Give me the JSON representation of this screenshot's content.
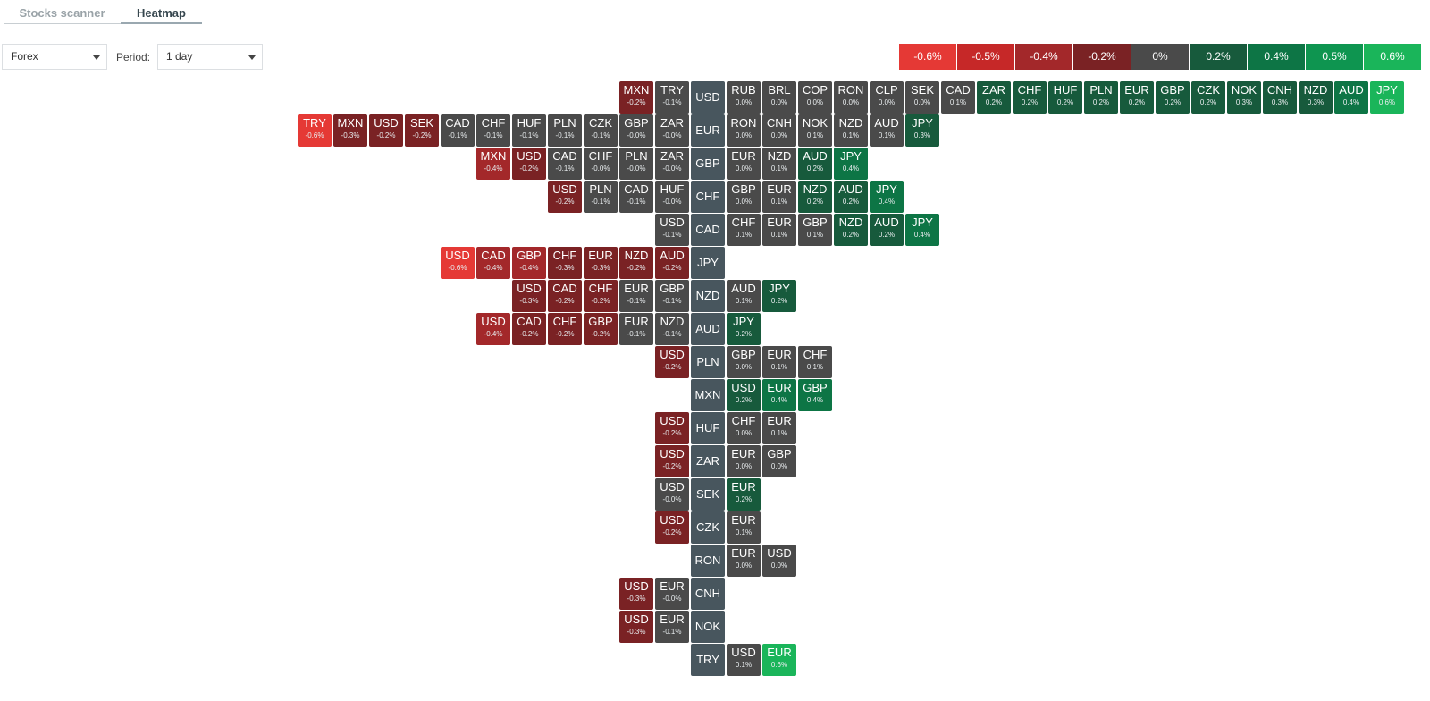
{
  "tabs": [
    {
      "label": "Stocks scanner",
      "active": false
    },
    {
      "label": "Heatmap",
      "active": true
    }
  ],
  "filters": {
    "market": {
      "value": "Forex"
    },
    "period": {
      "label": "Period:",
      "value": "1 day"
    }
  },
  "legend": [
    {
      "label": "-0.6%",
      "color": "#e53935"
    },
    {
      "label": "-0.5%",
      "color": "#c62828"
    },
    {
      "label": "-0.4%",
      "color": "#a3282a"
    },
    {
      "label": "-0.2%",
      "color": "#7a2224"
    },
    {
      "label": "0%",
      "color": "#4a4a4a"
    },
    {
      "label": "0.2%",
      "color": "#175a3c"
    },
    {
      "label": "0.4%",
      "color": "#0d7545"
    },
    {
      "label": "0.5%",
      "color": "#0e9550"
    },
    {
      "label": "0.6%",
      "color": "#1ab55a"
    }
  ],
  "heatmap": {
    "rows": [
      {
        "base": "USD",
        "left": [
          [
            "MXN",
            "-0.2%"
          ],
          [
            "TRY",
            "-0.1%"
          ]
        ],
        "right": [
          [
            "RUB",
            "0.0%"
          ],
          [
            "BRL",
            "0.0%"
          ],
          [
            "COP",
            "0.0%"
          ],
          [
            "RON",
            "0.0%"
          ],
          [
            "CLP",
            "0.0%"
          ],
          [
            "SEK",
            "0.0%"
          ],
          [
            "CAD",
            "0.1%"
          ],
          [
            "ZAR",
            "0.2%"
          ],
          [
            "CHF",
            "0.2%"
          ],
          [
            "HUF",
            "0.2%"
          ],
          [
            "PLN",
            "0.2%"
          ],
          [
            "EUR",
            "0.2%"
          ],
          [
            "GBP",
            "0.2%"
          ],
          [
            "CZK",
            "0.2%"
          ],
          [
            "NOK",
            "0.3%"
          ],
          [
            "CNH",
            "0.3%"
          ],
          [
            "NZD",
            "0.3%"
          ],
          [
            "AUD",
            "0.4%"
          ],
          [
            "JPY",
            "0.6%"
          ]
        ]
      },
      {
        "base": "EUR",
        "left": [
          [
            "TRY",
            "-0.6%"
          ],
          [
            "MXN",
            "-0.3%"
          ],
          [
            "USD",
            "-0.2%"
          ],
          [
            "SEK",
            "-0.2%"
          ],
          [
            "CAD",
            "-0.1%"
          ],
          [
            "CHF",
            "-0.1%"
          ],
          [
            "HUF",
            "-0.1%"
          ],
          [
            "PLN",
            "-0.1%"
          ],
          [
            "CZK",
            "-0.1%"
          ],
          [
            "GBP",
            "-0.0%"
          ],
          [
            "ZAR",
            "-0.0%"
          ]
        ],
        "right": [
          [
            "RON",
            "0.0%"
          ],
          [
            "CNH",
            "0.0%"
          ],
          [
            "NOK",
            "0.1%"
          ],
          [
            "NZD",
            "0.1%"
          ],
          [
            "AUD",
            "0.1%"
          ],
          [
            "JPY",
            "0.3%"
          ]
        ]
      },
      {
        "base": "GBP",
        "left": [
          [
            "MXN",
            "-0.4%"
          ],
          [
            "USD",
            "-0.2%"
          ],
          [
            "CAD",
            "-0.1%"
          ],
          [
            "CHF",
            "-0.0%"
          ],
          [
            "PLN",
            "-0.0%"
          ],
          [
            "ZAR",
            "-0.0%"
          ]
        ],
        "right": [
          [
            "EUR",
            "0.0%"
          ],
          [
            "NZD",
            "0.1%"
          ],
          [
            "AUD",
            "0.2%"
          ],
          [
            "JPY",
            "0.4%"
          ]
        ]
      },
      {
        "base": "CHF",
        "left": [
          [
            "USD",
            "-0.2%"
          ],
          [
            "PLN",
            "-0.1%"
          ],
          [
            "CAD",
            "-0.1%"
          ],
          [
            "HUF",
            "-0.0%"
          ]
        ],
        "right": [
          [
            "GBP",
            "0.0%"
          ],
          [
            "EUR",
            "0.1%"
          ],
          [
            "NZD",
            "0.2%"
          ],
          [
            "AUD",
            "0.2%"
          ],
          [
            "JPY",
            "0.4%"
          ]
        ]
      },
      {
        "base": "CAD",
        "left": [
          [
            "USD",
            "-0.1%"
          ]
        ],
        "right": [
          [
            "CHF",
            "0.1%"
          ],
          [
            "EUR",
            "0.1%"
          ],
          [
            "GBP",
            "0.1%"
          ],
          [
            "NZD",
            "0.2%"
          ],
          [
            "AUD",
            "0.2%"
          ],
          [
            "JPY",
            "0.4%"
          ]
        ]
      },
      {
        "base": "JPY",
        "left": [
          [
            "USD",
            "-0.6%"
          ],
          [
            "CAD",
            "-0.4%"
          ],
          [
            "GBP",
            "-0.4%"
          ],
          [
            "CHF",
            "-0.3%"
          ],
          [
            "EUR",
            "-0.3%"
          ],
          [
            "NZD",
            "-0.2%"
          ],
          [
            "AUD",
            "-0.2%"
          ]
        ],
        "right": []
      },
      {
        "base": "NZD",
        "left": [
          [
            "USD",
            "-0.3%"
          ],
          [
            "CAD",
            "-0.2%"
          ],
          [
            "CHF",
            "-0.2%"
          ],
          [
            "EUR",
            "-0.1%"
          ],
          [
            "GBP",
            "-0.1%"
          ]
        ],
        "right": [
          [
            "AUD",
            "0.1%"
          ],
          [
            "JPY",
            "0.2%"
          ]
        ]
      },
      {
        "base": "AUD",
        "left": [
          [
            "USD",
            "-0.4%"
          ],
          [
            "CAD",
            "-0.2%"
          ],
          [
            "CHF",
            "-0.2%"
          ],
          [
            "GBP",
            "-0.2%"
          ],
          [
            "EUR",
            "-0.1%"
          ],
          [
            "NZD",
            "-0.1%"
          ]
        ],
        "right": [
          [
            "JPY",
            "0.2%"
          ]
        ]
      },
      {
        "base": "PLN",
        "left": [
          [
            "USD",
            "-0.2%"
          ]
        ],
        "right": [
          [
            "GBP",
            "0.0%"
          ],
          [
            "EUR",
            "0.1%"
          ],
          [
            "CHF",
            "0.1%"
          ]
        ]
      },
      {
        "base": "MXN",
        "left": [],
        "right": [
          [
            "USD",
            "0.2%"
          ],
          [
            "EUR",
            "0.4%"
          ],
          [
            "GBP",
            "0.4%"
          ]
        ]
      },
      {
        "base": "HUF",
        "left": [
          [
            "USD",
            "-0.2%"
          ]
        ],
        "right": [
          [
            "CHF",
            "0.0%"
          ],
          [
            "EUR",
            "0.1%"
          ]
        ]
      },
      {
        "base": "ZAR",
        "left": [
          [
            "USD",
            "-0.2%"
          ]
        ],
        "right": [
          [
            "EUR",
            "0.0%"
          ],
          [
            "GBP",
            "0.0%"
          ]
        ]
      },
      {
        "base": "SEK",
        "left": [
          [
            "USD",
            "-0.0%"
          ]
        ],
        "right": [
          [
            "EUR",
            "0.2%"
          ]
        ]
      },
      {
        "base": "CZK",
        "left": [
          [
            "USD",
            "-0.2%"
          ]
        ],
        "right": [
          [
            "EUR",
            "0.1%"
          ]
        ]
      },
      {
        "base": "RON",
        "left": [],
        "right": [
          [
            "EUR",
            "0.0%"
          ],
          [
            "USD",
            "0.0%"
          ]
        ]
      },
      {
        "base": "CNH",
        "left": [
          [
            "USD",
            "-0.3%"
          ],
          [
            "EUR",
            "-0.0%"
          ]
        ],
        "right": []
      },
      {
        "base": "NOK",
        "left": [
          [
            "USD",
            "-0.3%"
          ],
          [
            "EUR",
            "-0.1%"
          ]
        ],
        "right": []
      },
      {
        "base": "TRY",
        "left": [],
        "right": [
          [
            "USD",
            "0.1%"
          ],
          [
            "EUR",
            "0.6%"
          ]
        ]
      }
    ]
  }
}
